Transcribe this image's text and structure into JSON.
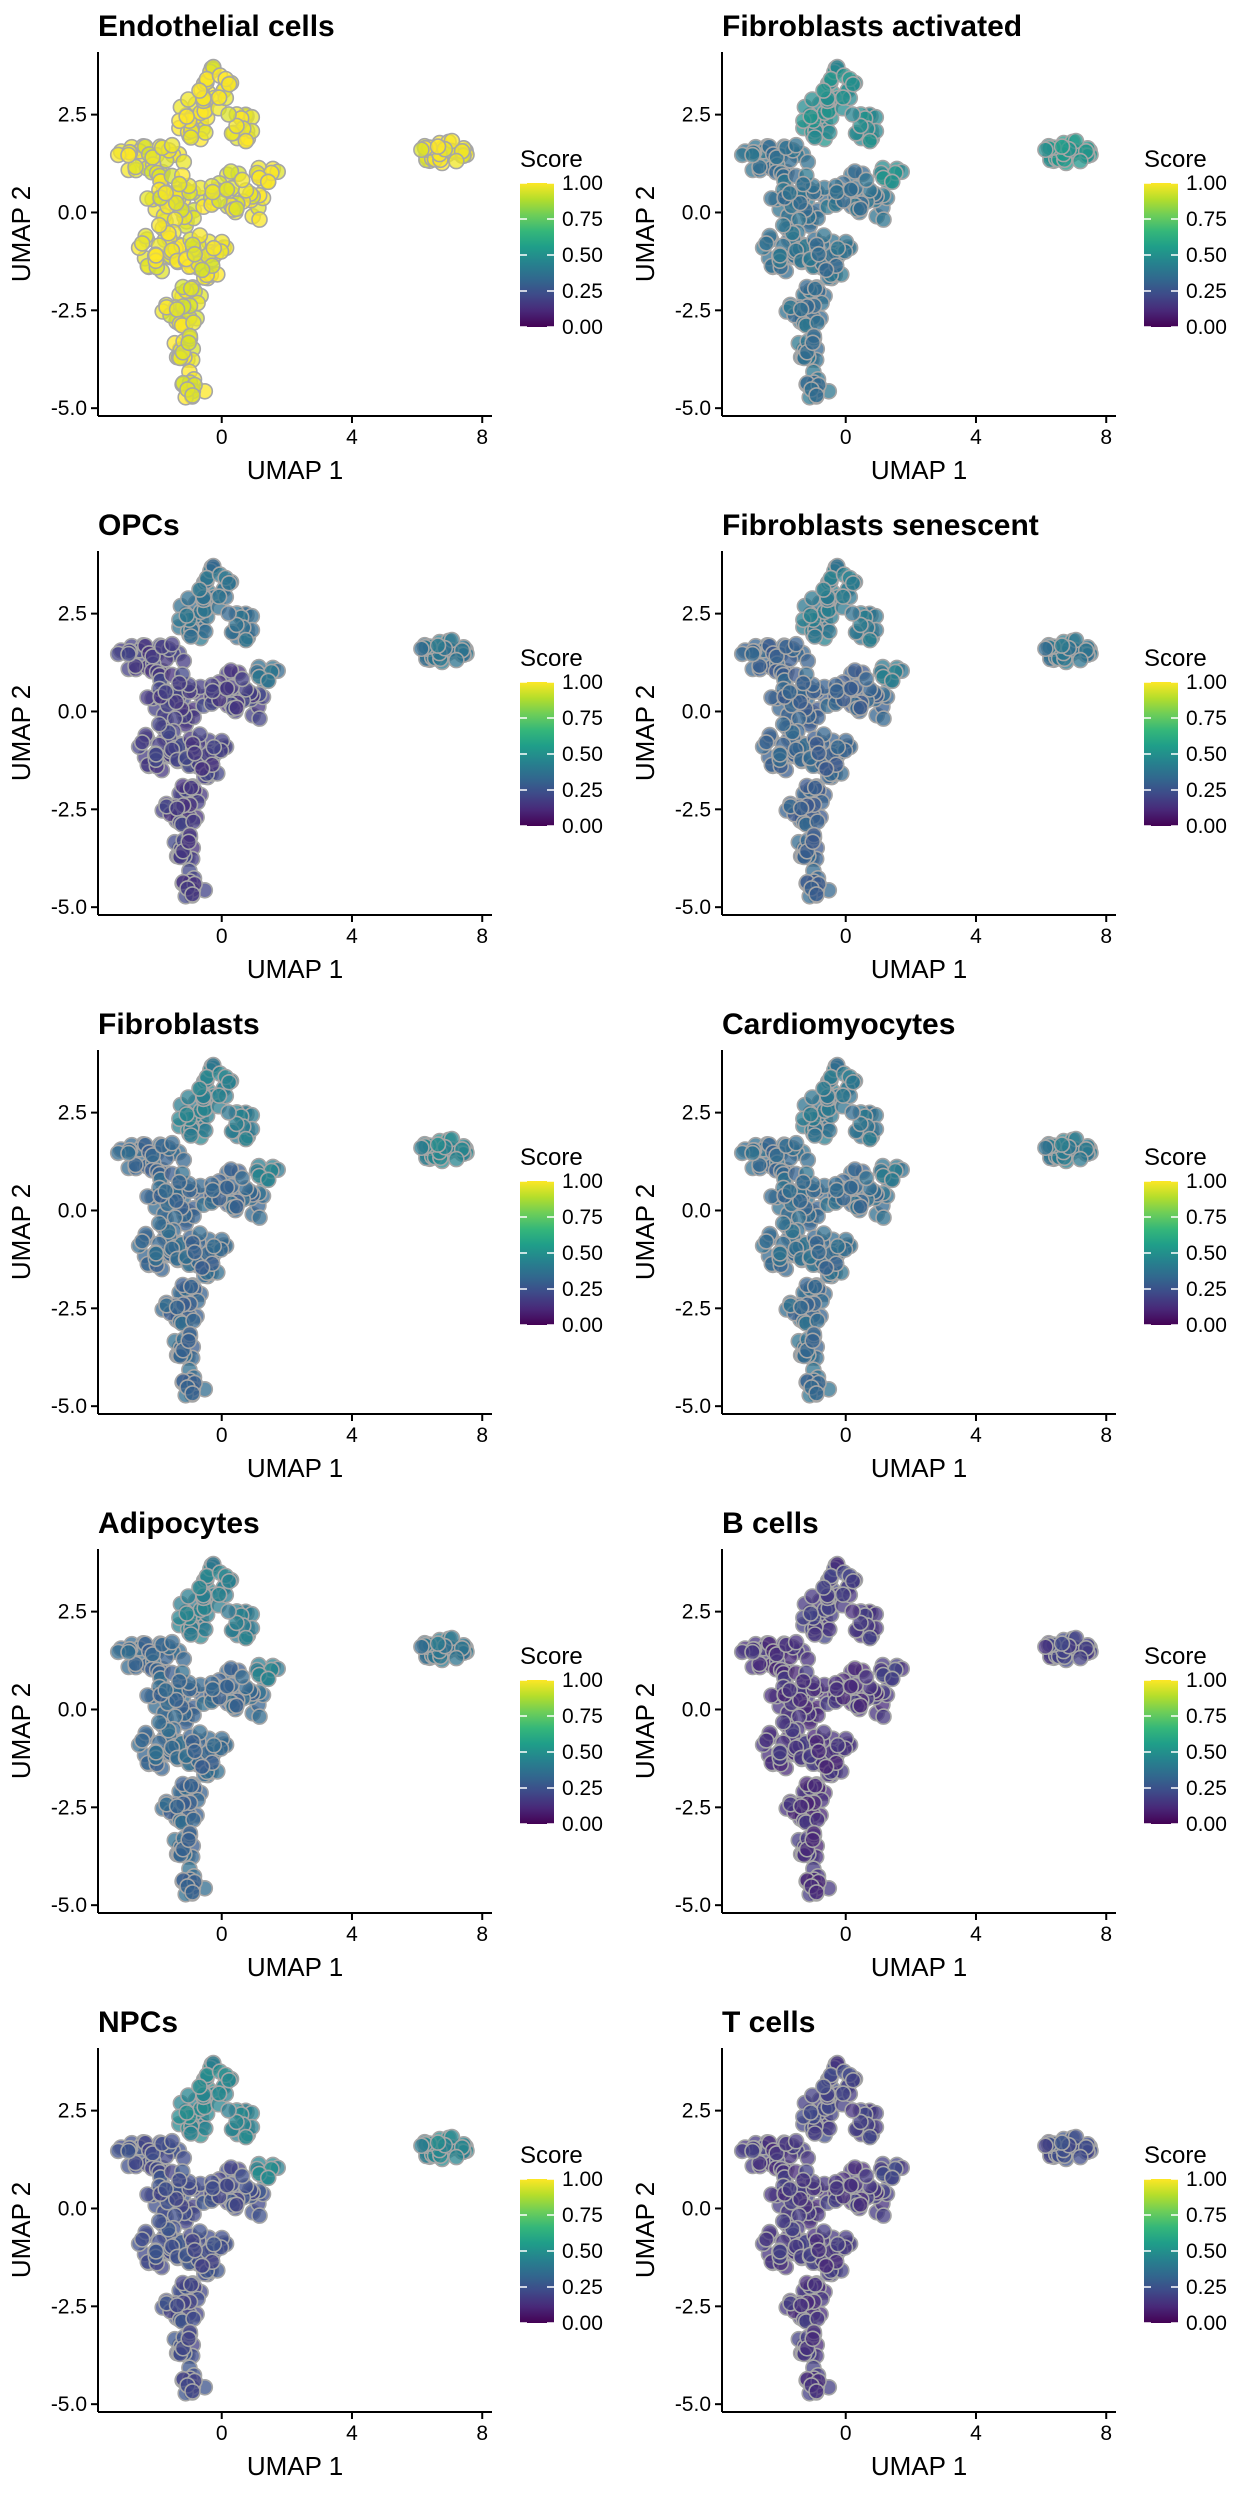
{
  "chart_data": {
    "type": "scatter",
    "xlabel": "UMAP 1",
    "ylabel": "UMAP 2",
    "xlim": [
      -3.8,
      8.3
    ],
    "ylim": [
      -5.2,
      4.1
    ],
    "x_ticks": [
      {
        "value": 0,
        "label": "0"
      },
      {
        "value": 4,
        "label": "4"
      },
      {
        "value": 8,
        "label": "8"
      }
    ],
    "y_ticks": [
      {
        "value": 2.5,
        "label": "2.5"
      },
      {
        "value": 0,
        "label": "0.0"
      },
      {
        "value": -2.5,
        "label": "-2.5"
      },
      {
        "value": -5,
        "label": "-5.0"
      }
    ],
    "legend": {
      "title": "Score",
      "placement": "right",
      "colormap": "viridis",
      "range": [
        0,
        1
      ],
      "ticks": [
        {
          "value": 1,
          "label": "1.00"
        },
        {
          "value": 0.75,
          "label": "0.75"
        },
        {
          "value": 0.5,
          "label": "0.50"
        },
        {
          "value": 0.25,
          "label": "0.25"
        },
        {
          "value": 0,
          "label": "0.00"
        }
      ],
      "colors": [
        "#440154",
        "#482878",
        "#3e4a89",
        "#31688e",
        "#26828e",
        "#1f9e89",
        "#35b779",
        "#6ece58",
        "#b5de2b",
        "#fde725"
      ]
    },
    "point_style": {
      "edge_color": "#a6a6a6",
      "fill_opacity": 0.75
    },
    "panels": [
      {
        "title": "Endothelial cells",
        "base": 0.97,
        "top": 0.98,
        "island": 0.98
      },
      {
        "title": "Fibroblasts activated",
        "base": 0.36,
        "top": 0.48,
        "island": 0.52
      },
      {
        "title": "OPCs",
        "base": 0.17,
        "top": 0.36,
        "island": 0.38
      },
      {
        "title": "Fibroblasts senescent",
        "base": 0.3,
        "top": 0.4,
        "island": 0.38
      },
      {
        "title": "Fibroblasts",
        "base": 0.32,
        "top": 0.42,
        "island": 0.45
      },
      {
        "title": "Cardiomyocytes",
        "base": 0.34,
        "top": 0.38,
        "island": 0.4
      },
      {
        "title": "Adipocytes",
        "base": 0.32,
        "top": 0.42,
        "island": 0.38
      },
      {
        "title": "B cells",
        "base": 0.13,
        "top": 0.16,
        "island": 0.18
      },
      {
        "title": "NPCs",
        "base": 0.22,
        "top": 0.45,
        "island": 0.45
      },
      {
        "title": "T cells",
        "base": 0.15,
        "top": 0.18,
        "island": 0.22
      }
    ],
    "clusters": {
      "main": [
        {
          "x": -2.6,
          "y": 1.4,
          "rx": 0.6,
          "ry": 0.35,
          "n": 14,
          "zone": "base"
        },
        {
          "x": -1.7,
          "y": 1.3,
          "rx": 0.6,
          "ry": 0.45,
          "n": 18,
          "zone": "base"
        },
        {
          "x": -0.8,
          "y": 2.4,
          "rx": 0.6,
          "ry": 0.6,
          "n": 26,
          "zone": "top"
        },
        {
          "x": -0.2,
          "y": 3.2,
          "rx": 0.5,
          "ry": 0.55,
          "n": 24,
          "zone": "top"
        },
        {
          "x": 0.6,
          "y": 2.3,
          "rx": 0.5,
          "ry": 0.5,
          "n": 16,
          "zone": "top"
        },
        {
          "x": 1.5,
          "y": 1.0,
          "rx": 0.45,
          "ry": 0.25,
          "n": 10,
          "zone": "top"
        },
        {
          "x": 1.1,
          "y": 0.3,
          "rx": 0.25,
          "ry": 0.5,
          "n": 8,
          "zone": "base"
        },
        {
          "x": -1.4,
          "y": 0.3,
          "rx": 0.9,
          "ry": 0.7,
          "n": 40,
          "zone": "base"
        },
        {
          "x": 0.2,
          "y": 0.5,
          "rx": 0.6,
          "ry": 0.6,
          "n": 24,
          "zone": "base"
        },
        {
          "x": -1.9,
          "y": -0.9,
          "rx": 0.7,
          "ry": 0.6,
          "n": 30,
          "zone": "base"
        },
        {
          "x": -0.5,
          "y": -1.1,
          "rx": 0.7,
          "ry": 0.6,
          "n": 30,
          "zone": "base"
        },
        {
          "x": -1.2,
          "y": -2.4,
          "rx": 0.65,
          "ry": 0.6,
          "n": 26,
          "zone": "base"
        },
        {
          "x": -1.1,
          "y": -3.6,
          "rx": 0.45,
          "ry": 0.5,
          "n": 16,
          "zone": "base"
        },
        {
          "x": -0.9,
          "y": -4.5,
          "rx": 0.45,
          "ry": 0.3,
          "n": 12,
          "zone": "base"
        }
      ],
      "island": [
        {
          "x": 6.8,
          "y": 1.55,
          "rx": 0.75,
          "ry": 0.3,
          "n": 34,
          "zone": "island"
        }
      ]
    }
  }
}
